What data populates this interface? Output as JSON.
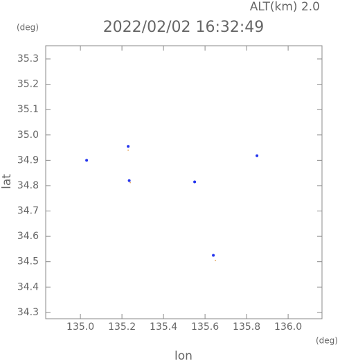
{
  "chart_data": {
    "type": "scatter",
    "title": "2022/02/02 16:32:49",
    "subtitle": "ALT(km) 2.0",
    "y_unit": "(deg)",
    "x_unit": "(deg)",
    "x_label": "lon",
    "y_label": "lat",
    "xlim": [
      134.833,
      136.163
    ],
    "ylim": [
      34.275,
      35.352
    ],
    "xticks": [
      {
        "value": 135,
        "label": "135.0"
      },
      135.2,
      135.4,
      135.6,
      135.8,
      {
        "value": 136,
        "label": "136.0"
      }
    ],
    "yticks": [
      34.3,
      34.4,
      34.5,
      34.6,
      34.7,
      34.8,
      34.9,
      {
        "value": 35,
        "label": "35.0"
      },
      35.1,
      35.2,
      35.3
    ],
    "grid": false,
    "series": [
      {
        "color": "#2233ee",
        "x": [
          135.03,
          135.23,
          135.235,
          135.55,
          135.85,
          135.64
        ],
        "y": [
          34.9,
          34.955,
          34.82,
          34.815,
          34.918,
          34.525
        ]
      },
      {
        "color": "#e8b070",
        "x": [
          135.23,
          135.65,
          135.24
        ],
        "y": [
          34.94,
          34.505,
          34.812
        ]
      }
    ]
  }
}
